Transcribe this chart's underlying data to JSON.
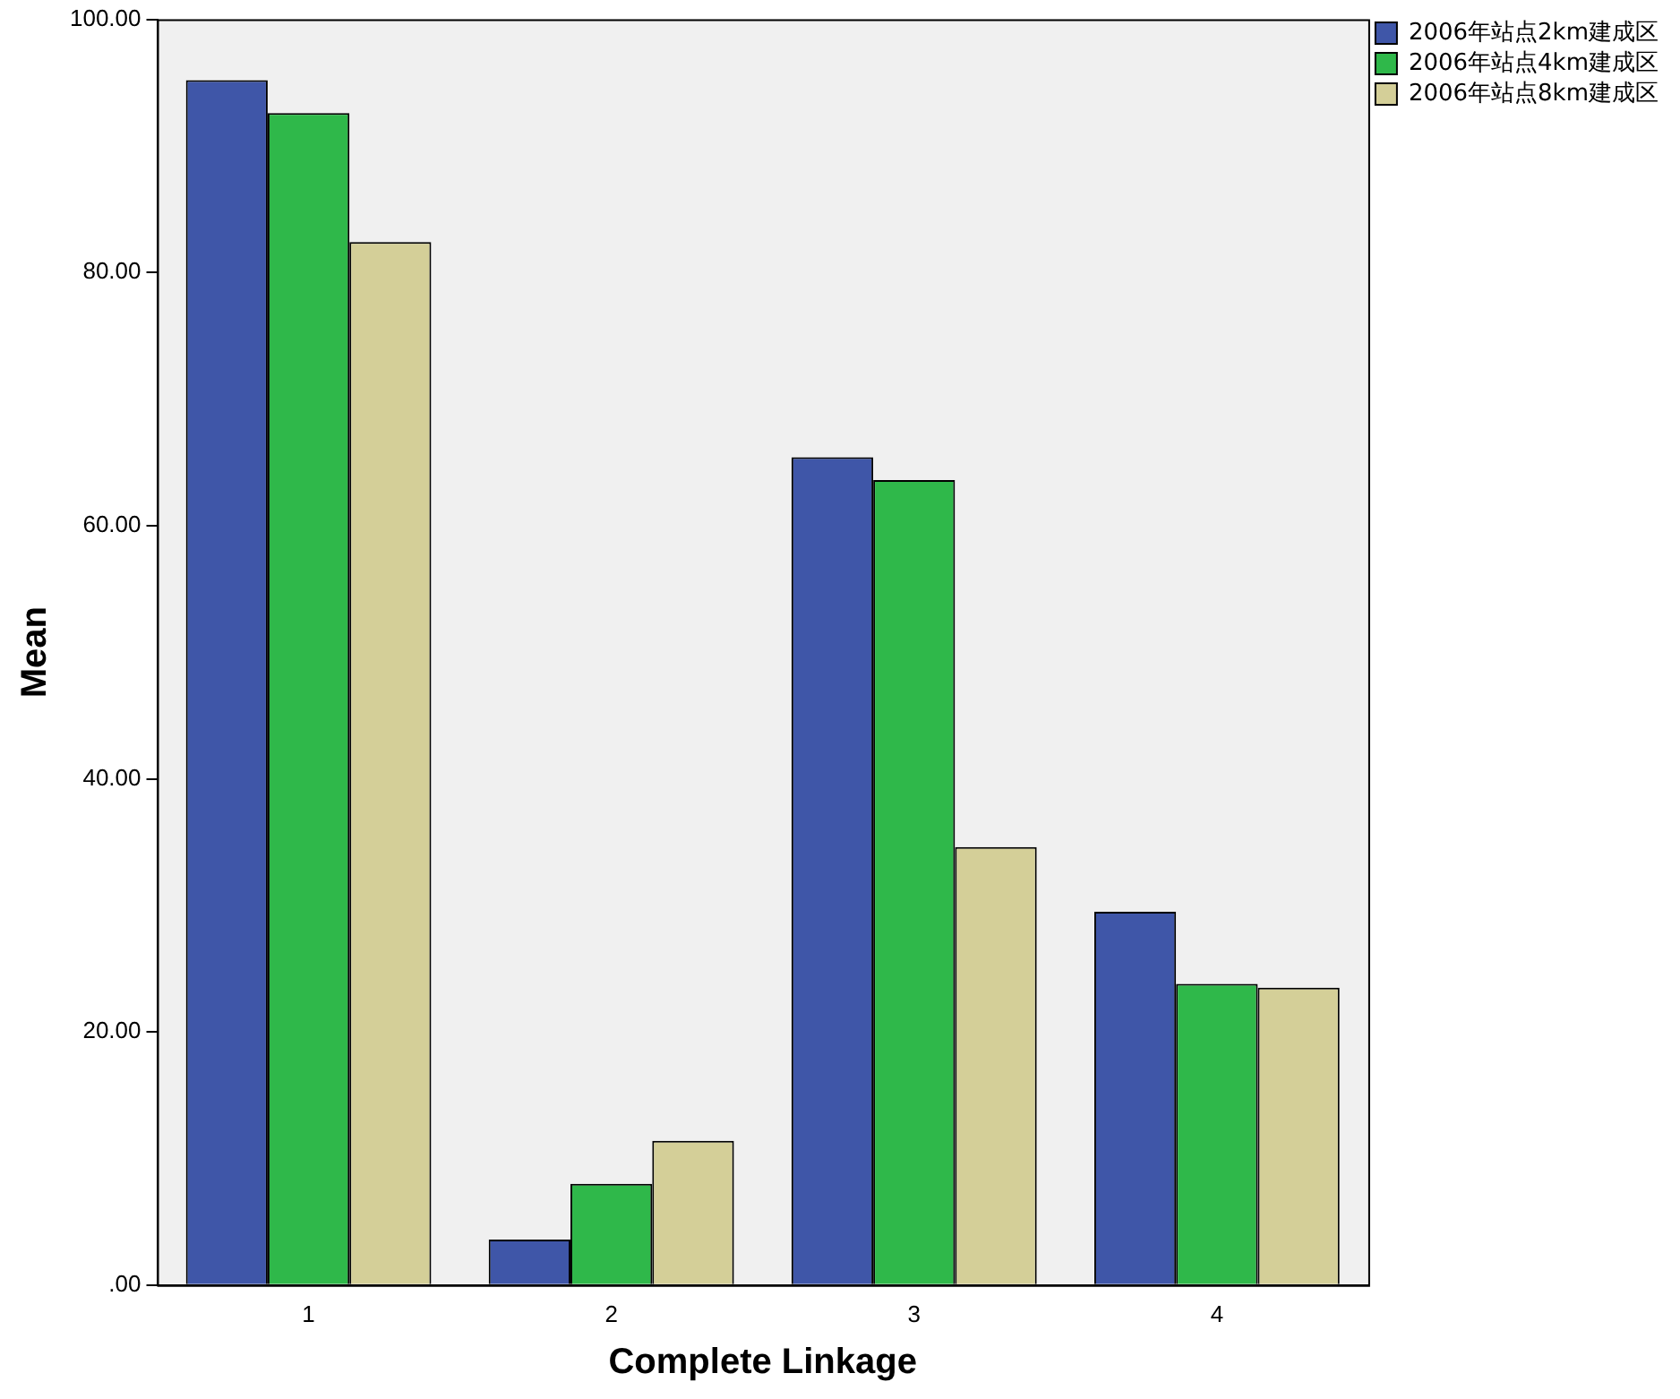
{
  "chart_data": {
    "type": "bar",
    "xlabel": "Complete Linkage",
    "ylabel": "Mean",
    "categories": [
      "1",
      "2",
      "3",
      "4"
    ],
    "series": [
      {
        "name": "2006年站点2km建成区",
        "color": "#3f56a8",
        "values": [
          95.2,
          3.6,
          65.4,
          29.5
        ]
      },
      {
        "name": "2006年站点4km建成区",
        "color": "#2fb84a",
        "values": [
          92.6,
          8.0,
          63.6,
          23.8
        ]
      },
      {
        "name": "2006年站点8km建成区",
        "color": "#d4cf98",
        "values": [
          82.4,
          11.4,
          34.6,
          23.5
        ]
      }
    ],
    "ylim": [
      0,
      100.0
    ],
    "yticks": [
      {
        "value": 0,
        "label": ".00"
      },
      {
        "value": 20,
        "label": "20.00"
      },
      {
        "value": 40,
        "label": "40.00"
      },
      {
        "value": 60,
        "label": "60.00"
      },
      {
        "value": 80,
        "label": "80.00"
      },
      {
        "value": 100,
        "label": "100.00"
      }
    ],
    "grid": false,
    "legend": "top right"
  }
}
